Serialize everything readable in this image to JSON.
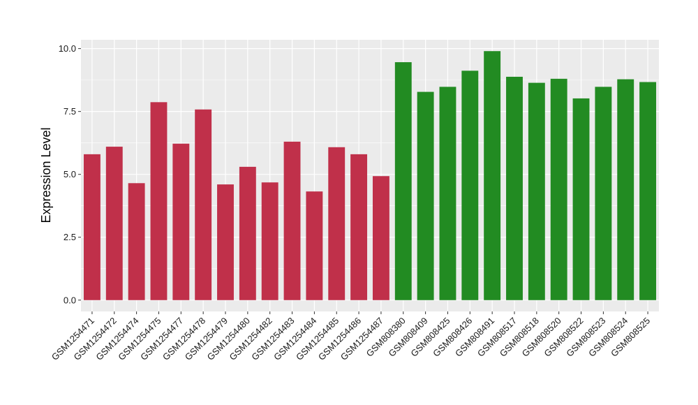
{
  "chart_data": {
    "type": "bar",
    "title": "",
    "xlabel": "",
    "ylabel": "Expression Level",
    "ylim": [
      -0.45,
      10.35
    ],
    "yticks": [
      0.0,
      2.5,
      5.0,
      7.5,
      10.0
    ],
    "ytick_labels": [
      "0.0",
      "2.5",
      "5.0",
      "7.5",
      "10.0"
    ],
    "grid": true,
    "legend": "none",
    "categories": [
      "GSM1254471",
      "GSM1254472",
      "GSM1254474",
      "GSM1254475",
      "GSM1254477",
      "GSM1254478",
      "GSM1254479",
      "GSM1254480",
      "GSM1254482",
      "GSM1254483",
      "GSM1254484",
      "GSM1254485",
      "GSM1254486",
      "GSM1254487",
      "GSM808380",
      "GSM808409",
      "GSM808425",
      "GSM808426",
      "GSM808491",
      "GSM808517",
      "GSM808518",
      "GSM808520",
      "GSM808522",
      "GSM808523",
      "GSM808524",
      "GSM808525"
    ],
    "values": [
      5.8,
      6.1,
      4.65,
      7.87,
      6.22,
      7.58,
      4.6,
      5.3,
      4.68,
      6.3,
      4.32,
      6.08,
      5.8,
      4.93,
      9.46,
      8.28,
      8.48,
      9.12,
      9.9,
      8.88,
      8.64,
      8.8,
      8.02,
      8.48,
      8.78,
      8.67
    ],
    "bar_colors": [
      "#c0304a",
      "#c0304a",
      "#c0304a",
      "#c0304a",
      "#c0304a",
      "#c0304a",
      "#c0304a",
      "#c0304a",
      "#c0304a",
      "#c0304a",
      "#c0304a",
      "#c0304a",
      "#c0304a",
      "#c0304a",
      "#228b22",
      "#228b22",
      "#228b22",
      "#228b22",
      "#228b22",
      "#228b22",
      "#228b22",
      "#228b22",
      "#228b22",
      "#228b22",
      "#228b22",
      "#228b22"
    ],
    "panel_color": "#ebebeb",
    "grid_color": "#ffffff"
  }
}
